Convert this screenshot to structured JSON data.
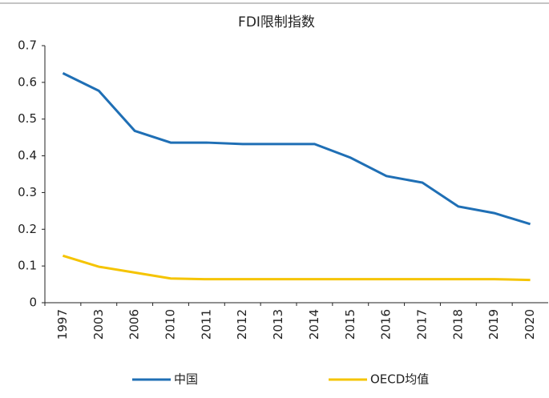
{
  "chart_data": {
    "type": "line",
    "title": "FDI限制指数",
    "categories": [
      "1997",
      "2003",
      "2006",
      "2010",
      "2011",
      "2012",
      "2013",
      "2014",
      "2015",
      "2016",
      "2017",
      "2018",
      "2019",
      "2020"
    ],
    "series": [
      {
        "name": "中国",
        "color": "#1f6fb5",
        "values": [
          0.625,
          0.577,
          0.468,
          0.436,
          0.436,
          0.432,
          0.432,
          0.432,
          0.395,
          0.345,
          0.327,
          0.262,
          0.244,
          0.214
        ]
      },
      {
        "name": "OECD均值",
        "color": "#f5c400",
        "values": [
          0.128,
          0.098,
          0.082,
          0.066,
          0.064,
          0.064,
          0.064,
          0.064,
          0.064,
          0.064,
          0.064,
          0.064,
          0.064,
          0.062
        ]
      }
    ],
    "ylim": [
      0,
      0.7
    ],
    "yticks": [
      0,
      0.1,
      0.2,
      0.3,
      0.4,
      0.5,
      0.6,
      0.7
    ],
    "grid": false,
    "legend": "bottom"
  }
}
